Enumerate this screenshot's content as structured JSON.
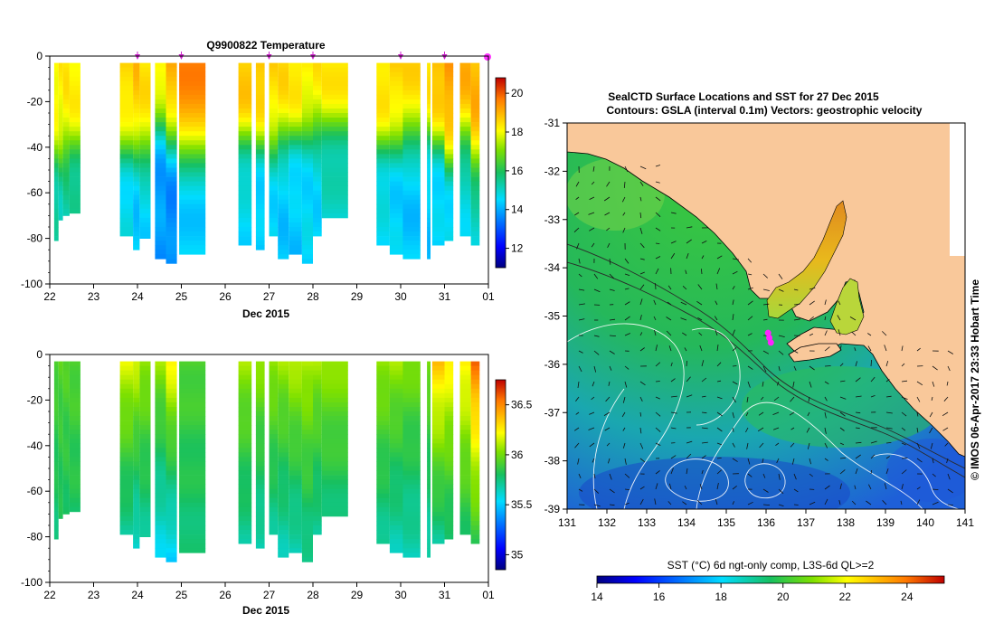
{
  "chart_data": [
    {
      "type": "heatmap",
      "title": "Q9900822  Temperature",
      "xlabel": "Dec 2015",
      "ylabel": "",
      "x_ticks": [
        "22",
        "23",
        "24",
        "25",
        "26",
        "27",
        "28",
        "29",
        "30",
        "31",
        "01"
      ],
      "y_ticks": [
        "0",
        "-20",
        "-40",
        "-60",
        "-80",
        "-100"
      ],
      "ylim": [
        -100,
        0
      ],
      "xlim": [
        22,
        32
      ],
      "markers_x": [
        24.0,
        25.0,
        27.0,
        28.0,
        30.0,
        31.0,
        32.0
      ],
      "colorbar": {
        "ticks": [
          "12",
          "14",
          "16",
          "18",
          "20"
        ],
        "range": [
          11,
          20.8
        ]
      },
      "profiles": [
        {
          "x0": 22.1,
          "x1": 22.2,
          "bottom": -81,
          "top_val": 18.2,
          "grad": -42,
          "deep_val": 15.2
        },
        {
          "x0": 22.2,
          "x1": 22.3,
          "bottom": -72,
          "top_val": 18.2,
          "grad": -42,
          "deep_val": 15.2
        },
        {
          "x0": 22.3,
          "x1": 22.45,
          "bottom": -70,
          "top_val": 18.3,
          "grad": -40,
          "deep_val": 15.3
        },
        {
          "x0": 22.45,
          "x1": 22.7,
          "bottom": -69,
          "top_val": 18.3,
          "grad": -38,
          "deep_val": 15.3
        },
        {
          "x0": 23.6,
          "x1": 23.9,
          "bottom": -79,
          "top_val": 18.6,
          "grad": -38,
          "deep_val": 14.6
        },
        {
          "x0": 23.9,
          "x1": 24.05,
          "bottom": -85,
          "top_val": 18.8,
          "grad": -40,
          "deep_val": 14.3
        },
        {
          "x0": 24.05,
          "x1": 24.3,
          "bottom": -80,
          "top_val": 18.4,
          "grad": -42,
          "deep_val": 14.5
        },
        {
          "x0": 24.4,
          "x1": 24.65,
          "bottom": -89,
          "top_val": 18.4,
          "grad": -28,
          "deep_val": 13.8
        },
        {
          "x0": 24.65,
          "x1": 24.9,
          "bottom": -91,
          "top_val": 19.0,
          "grad": -35,
          "deep_val": 13.6
        },
        {
          "x0": 24.95,
          "x1": 25.55,
          "bottom": -87,
          "top_val": 19.5,
          "grad": -40,
          "deep_val": 14.4
        },
        {
          "x0": 26.3,
          "x1": 26.6,
          "bottom": -83,
          "top_val": 18.8,
          "grad": -36,
          "deep_val": 14.6
        },
        {
          "x0": 26.7,
          "x1": 26.9,
          "bottom": -85,
          "top_val": 18.9,
          "grad": -37,
          "deep_val": 14.3
        },
        {
          "x0": 27.0,
          "x1": 27.2,
          "bottom": -79,
          "top_val": 18.5,
          "grad": -38,
          "deep_val": 14.5
        },
        {
          "x0": 27.2,
          "x1": 27.45,
          "bottom": -89,
          "top_val": 18.5,
          "grad": -36,
          "deep_val": 14.3
        },
        {
          "x0": 27.45,
          "x1": 27.75,
          "bottom": -87,
          "top_val": 18.5,
          "grad": -34,
          "deep_val": 14.3
        },
        {
          "x0": 27.75,
          "x1": 28.0,
          "bottom": -91,
          "top_val": 18.3,
          "grad": -32,
          "deep_val": 14.5
        },
        {
          "x0": 28.0,
          "x1": 28.2,
          "bottom": -79,
          "top_val": 18.3,
          "grad": -32,
          "deep_val": 14.5
        },
        {
          "x0": 28.2,
          "x1": 28.8,
          "bottom": -71,
          "top_val": 18.4,
          "grad": -30,
          "deep_val": 15.0
        },
        {
          "x0": 29.45,
          "x1": 29.75,
          "bottom": -83,
          "top_val": 18.5,
          "grad": -38,
          "deep_val": 14.6
        },
        {
          "x0": 29.75,
          "x1": 30.05,
          "bottom": -87,
          "top_val": 18.6,
          "grad": -36,
          "deep_val": 14.4
        },
        {
          "x0": 30.05,
          "x1": 30.45,
          "bottom": -89,
          "top_val": 18.5,
          "grad": -34,
          "deep_val": 14.3
        },
        {
          "x0": 30.6,
          "x1": 30.68,
          "bottom": -89,
          "top_val": 18.5,
          "grad": -34,
          "deep_val": 14.3
        },
        {
          "x0": 30.72,
          "x1": 31.0,
          "bottom": -83,
          "top_val": 19.0,
          "grad": -36,
          "deep_val": 14.4
        },
        {
          "x0": 31.0,
          "x1": 31.2,
          "bottom": -81,
          "top_val": 19.2,
          "grad": -44,
          "deep_val": 14.5
        },
        {
          "x0": 31.35,
          "x1": 31.6,
          "bottom": -79,
          "top_val": 19.0,
          "grad": -34,
          "deep_val": 14.8
        },
        {
          "x0": 31.6,
          "x1": 31.8,
          "bottom": -83,
          "top_val": 19.0,
          "grad": -46,
          "deep_val": 15.0
        }
      ]
    },
    {
      "type": "heatmap",
      "title": "",
      "xlabel": "Dec 2015",
      "ylabel": "",
      "x_ticks": [
        "22",
        "23",
        "24",
        "25",
        "26",
        "27",
        "28",
        "29",
        "30",
        "31",
        "01"
      ],
      "y_ticks": [
        "0",
        "-20",
        "-40",
        "-60",
        "-80",
        "-100"
      ],
      "ylim": [
        -100,
        0
      ],
      "xlim": [
        22,
        32
      ],
      "colorbar": {
        "ticks": [
          "35",
          "35.5",
          "36",
          "36.5"
        ],
        "range": [
          34.85,
          36.75
        ]
      },
      "profiles": [
        {
          "x0": 22.1,
          "x1": 22.2,
          "bottom": -81,
          "top_val": 35.95,
          "deep_val": 35.75
        },
        {
          "x0": 22.2,
          "x1": 22.3,
          "bottom": -72,
          "top_val": 35.95,
          "deep_val": 35.8
        },
        {
          "x0": 22.3,
          "x1": 22.45,
          "bottom": -70,
          "top_val": 35.95,
          "deep_val": 35.8
        },
        {
          "x0": 22.45,
          "x1": 22.7,
          "bottom": -69,
          "top_val": 35.95,
          "deep_val": 35.8
        },
        {
          "x0": 23.6,
          "x1": 23.9,
          "bottom": -79,
          "top_val": 36.2,
          "deep_val": 35.7
        },
        {
          "x0": 23.9,
          "x1": 24.05,
          "bottom": -85,
          "top_val": 36.2,
          "deep_val": 35.6
        },
        {
          "x0": 24.05,
          "x1": 24.3,
          "bottom": -80,
          "top_val": 36.1,
          "deep_val": 35.7
        },
        {
          "x0": 24.4,
          "x1": 24.65,
          "bottom": -89,
          "top_val": 36.1,
          "deep_val": 35.55
        },
        {
          "x0": 24.65,
          "x1": 24.9,
          "bottom": -91,
          "top_val": 36.3,
          "deep_val": 35.5
        },
        {
          "x0": 24.95,
          "x1": 25.55,
          "bottom": -87,
          "top_val": 35.95,
          "deep_val": 35.75
        },
        {
          "x0": 26.3,
          "x1": 26.6,
          "bottom": -83,
          "top_val": 36.1,
          "deep_val": 35.7
        },
        {
          "x0": 26.7,
          "x1": 26.9,
          "bottom": -85,
          "top_val": 36.1,
          "deep_val": 35.65
        },
        {
          "x0": 27.0,
          "x1": 27.2,
          "bottom": -79,
          "top_val": 36.1,
          "deep_val": 35.7
        },
        {
          "x0": 27.2,
          "x1": 27.45,
          "bottom": -89,
          "top_val": 36.1,
          "deep_val": 35.65
        },
        {
          "x0": 27.45,
          "x1": 27.75,
          "bottom": -87,
          "top_val": 36.15,
          "deep_val": 35.65
        },
        {
          "x0": 27.75,
          "x1": 28.0,
          "bottom": -91,
          "top_val": 36.15,
          "deep_val": 35.7
        },
        {
          "x0": 28.0,
          "x1": 28.2,
          "bottom": -79,
          "top_val": 36.1,
          "deep_val": 35.7
        },
        {
          "x0": 28.2,
          "x1": 28.8,
          "bottom": -71,
          "top_val": 36.1,
          "deep_val": 35.75
        },
        {
          "x0": 29.45,
          "x1": 29.75,
          "bottom": -83,
          "top_val": 36.1,
          "deep_val": 35.7
        },
        {
          "x0": 29.75,
          "x1": 30.05,
          "bottom": -87,
          "top_val": 36.1,
          "deep_val": 35.65
        },
        {
          "x0": 30.05,
          "x1": 30.45,
          "bottom": -89,
          "top_val": 36.05,
          "deep_val": 35.65
        },
        {
          "x0": 30.6,
          "x1": 30.68,
          "bottom": -89,
          "top_val": 36.05,
          "deep_val": 35.65
        },
        {
          "x0": 30.72,
          "x1": 31.0,
          "bottom": -83,
          "top_val": 36.4,
          "deep_val": 35.7
        },
        {
          "x0": 31.0,
          "x1": 31.2,
          "bottom": -81,
          "top_val": 36.3,
          "deep_val": 35.75
        },
        {
          "x0": 31.35,
          "x1": 31.6,
          "bottom": -79,
          "top_val": 36.3,
          "deep_val": 35.8
        },
        {
          "x0": 31.6,
          "x1": 31.8,
          "bottom": -83,
          "top_val": 36.6,
          "deep_val": 35.85
        }
      ]
    },
    {
      "type": "heatmap",
      "title": "SealCTD Surface Locations and SST for 27 Dec 2015",
      "subtitle": "Contours: GSLA (interval 0.1m) Vectors: geostrophic velocity",
      "xlabel": "",
      "ylabel": "",
      "x_ticks": [
        "131",
        "132",
        "133",
        "134",
        "135",
        "136",
        "137",
        "138",
        "139",
        "140",
        "141"
      ],
      "y_ticks": [
        "-31",
        "-32",
        "-33",
        "-34",
        "-35",
        "-36",
        "-37",
        "-38",
        "-39"
      ],
      "xlim": [
        131,
        141
      ],
      "ylim": [
        -39,
        -31
      ],
      "side_label": "© IMOS 06-Apr-2017 23:33 Hobart Time",
      "seal_positions": [
        [
          136.05,
          -35.35
        ],
        [
          136.08,
          -35.45
        ],
        [
          136.12,
          -35.55
        ]
      ],
      "colorbar": {
        "label": "SST (°C) 6d ngt-only comp, L3S-6d QL>=2",
        "ticks": [
          "14",
          "16",
          "18",
          "20",
          "22",
          "24"
        ],
        "range": [
          14,
          25.2
        ]
      }
    }
  ]
}
